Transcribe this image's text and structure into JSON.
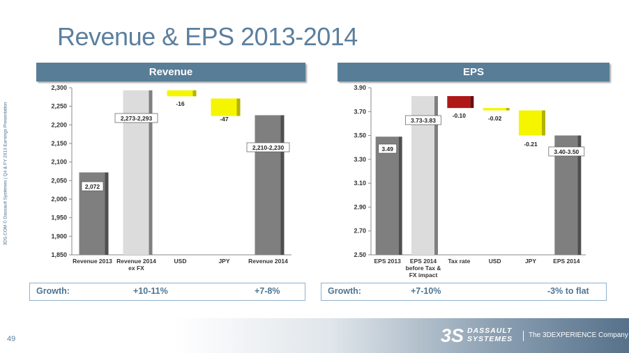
{
  "slide": {
    "title": "Revenue & EPS 2013-2014",
    "side_note": "3DS.COM © Dassault Systèmes | Q4 & FY 2013 Earnings Presentation",
    "page_number": "49"
  },
  "panels": {
    "revenue": {
      "header": "Revenue",
      "growth_label": "Growth:",
      "growth_1": "+10-11%",
      "growth_2": "+7-8%"
    },
    "eps": {
      "header": "EPS",
      "growth_label": "Growth:",
      "growth_1": "+7-10%",
      "growth_2": "-3% to flat"
    }
  },
  "colors": {
    "title": "#5b7f9e",
    "header_bg": "#587d97",
    "bar_dark": "#7f7f7f",
    "bar_light": "#dcdcdc",
    "bar_yellow": "#f5f500",
    "bar_red": "#b01818"
  },
  "chart_data": [
    {
      "type": "bar",
      "subtype": "waterfall",
      "title": "Revenue",
      "ylim": [
        1850,
        2300
      ],
      "yticks": [
        "1,850",
        "1,900",
        "1,950",
        "2,000",
        "2,050",
        "2,100",
        "2,150",
        "2,200",
        "2,250",
        "2,300"
      ],
      "categories": [
        "Revenue 2013",
        "Revenue 2014\nex FX",
        "USD",
        "JPY",
        "Revenue 2014"
      ],
      "bars": [
        {
          "kind": "total",
          "color": "dark",
          "low": 1850,
          "high": 2072,
          "label": "2,072"
        },
        {
          "kind": "total",
          "color": "light",
          "low": 1850,
          "high": 2293,
          "label": "2,273-2,293"
        },
        {
          "kind": "delta",
          "color": "yellow",
          "low": 2277,
          "high": 2293,
          "label": "-16"
        },
        {
          "kind": "delta",
          "color": "yellow",
          "low": 2224,
          "high": 2271,
          "label": "-47"
        },
        {
          "kind": "total",
          "color": "dark",
          "low": 1850,
          "high": 2226,
          "label": "2,210-2,230"
        }
      ]
    },
    {
      "type": "bar",
      "subtype": "waterfall",
      "title": "EPS",
      "ylim": [
        2.5,
        3.9
      ],
      "yticks": [
        "2.50",
        "2.70",
        "2.90",
        "3.10",
        "3.30",
        "3.50",
        "3.70",
        "3.90"
      ],
      "categories": [
        "EPS 2013",
        "EPS 2014\nbefore Tax &\nFX impact",
        "Tax rate",
        "USD",
        "JPY",
        "EPS 2014"
      ],
      "bars": [
        {
          "kind": "total",
          "color": "dark",
          "low": 2.5,
          "high": 3.49,
          "label": "3.49"
        },
        {
          "kind": "total",
          "color": "light",
          "low": 2.5,
          "high": 3.83,
          "label": "3.73-3.83"
        },
        {
          "kind": "delta",
          "color": "red",
          "low": 3.73,
          "high": 3.83,
          "label": "-0.10"
        },
        {
          "kind": "delta",
          "color": "yellow",
          "low": 3.71,
          "high": 3.73,
          "label": "-0.02"
        },
        {
          "kind": "delta",
          "color": "yellow",
          "low": 3.5,
          "high": 3.71,
          "label": "-0.21"
        },
        {
          "kind": "total",
          "color": "dark",
          "low": 2.5,
          "high": 3.5,
          "label": "3.40-3.50"
        }
      ]
    }
  ],
  "brand": {
    "mark": "3S",
    "word_1": "DASSAULT",
    "word_2": "SYSTEMES",
    "tagline": "The 3DEXPERIENCE Company"
  }
}
